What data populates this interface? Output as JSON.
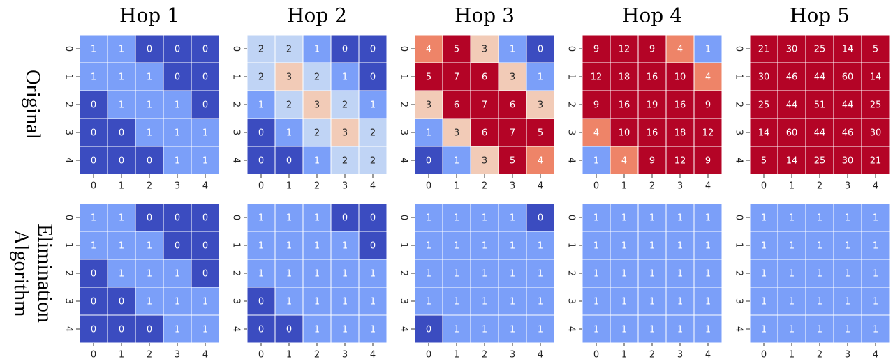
{
  "chart_data": {
    "type": "heatmap",
    "colormap": "coolwarm",
    "color_range": [
      0,
      4
    ],
    "column_titles": [
      "Hop 1",
      "Hop 2",
      "Hop 3",
      "Hop 4",
      "Hop 5"
    ],
    "row_titles": [
      [
        "Original"
      ],
      [
        "Elimination",
        "Algorithm"
      ]
    ],
    "tick_labels": [
      "0",
      "1",
      "2",
      "3",
      "4"
    ],
    "matrices": [
      [
        [
          [
            1,
            1,
            0,
            0,
            0
          ],
          [
            1,
            1,
            1,
            0,
            0
          ],
          [
            0,
            1,
            1,
            1,
            0
          ],
          [
            0,
            0,
            1,
            1,
            1
          ],
          [
            0,
            0,
            0,
            1,
            1
          ]
        ],
        [
          [
            2,
            2,
            1,
            0,
            0
          ],
          [
            2,
            3,
            2,
            1,
            0
          ],
          [
            1,
            2,
            3,
            2,
            1
          ],
          [
            0,
            1,
            2,
            3,
            2
          ],
          [
            0,
            0,
            1,
            2,
            2
          ]
        ],
        [
          [
            4,
            5,
            3,
            1,
            0
          ],
          [
            5,
            7,
            6,
            3,
            1
          ],
          [
            3,
            6,
            7,
            6,
            3
          ],
          [
            1,
            3,
            6,
            7,
            5
          ],
          [
            0,
            1,
            3,
            5,
            4
          ]
        ],
        [
          [
            9,
            12,
            9,
            4,
            1
          ],
          [
            12,
            18,
            16,
            10,
            4
          ],
          [
            9,
            16,
            19,
            16,
            9
          ],
          [
            4,
            10,
            16,
            18,
            12
          ],
          [
            1,
            4,
            9,
            12,
            9
          ]
        ],
        [
          [
            21,
            30,
            25,
            14,
            5
          ],
          [
            30,
            46,
            44,
            60,
            14
          ],
          [
            25,
            44,
            51,
            44,
            25
          ],
          [
            14,
            60,
            44,
            46,
            30
          ],
          [
            5,
            14,
            25,
            30,
            21
          ]
        ]
      ],
      [
        [
          [
            1,
            1,
            0,
            0,
            0
          ],
          [
            1,
            1,
            1,
            0,
            0
          ],
          [
            0,
            1,
            1,
            1,
            0
          ],
          [
            0,
            0,
            1,
            1,
            1
          ],
          [
            0,
            0,
            0,
            1,
            1
          ]
        ],
        [
          [
            1,
            1,
            1,
            0,
            0
          ],
          [
            1,
            1,
            1,
            1,
            0
          ],
          [
            1,
            1,
            1,
            1,
            1
          ],
          [
            0,
            1,
            1,
            1,
            1
          ],
          [
            0,
            0,
            1,
            1,
            1
          ]
        ],
        [
          [
            1,
            1,
            1,
            1,
            0
          ],
          [
            1,
            1,
            1,
            1,
            1
          ],
          [
            1,
            1,
            1,
            1,
            1
          ],
          [
            1,
            1,
            1,
            1,
            1
          ],
          [
            0,
            1,
            1,
            1,
            1
          ]
        ],
        [
          [
            1,
            1,
            1,
            1,
            1
          ],
          [
            1,
            1,
            1,
            1,
            1
          ],
          [
            1,
            1,
            1,
            1,
            1
          ],
          [
            1,
            1,
            1,
            1,
            1
          ],
          [
            1,
            1,
            1,
            1,
            1
          ]
        ],
        [
          [
            1,
            1,
            1,
            1,
            1
          ],
          [
            1,
            1,
            1,
            1,
            1
          ],
          [
            1,
            1,
            1,
            1,
            1
          ],
          [
            1,
            1,
            1,
            1,
            1
          ],
          [
            1,
            1,
            1,
            1,
            1
          ]
        ]
      ]
    ],
    "value_colors": {
      "0": "#3b4cc0",
      "1": "#7b9ff9",
      "2": "#c0d4f5",
      "3": "#f2cbb7",
      "4": "#ee8468",
      "5+": "#b40426"
    }
  }
}
